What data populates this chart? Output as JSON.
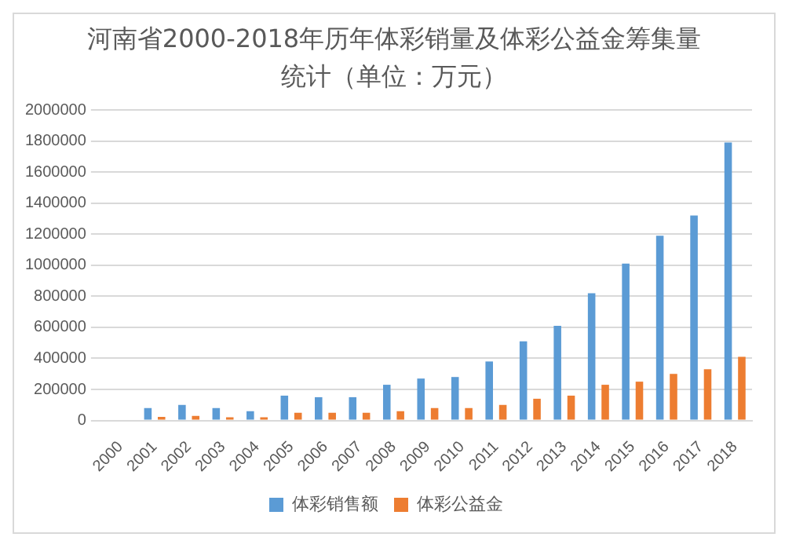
{
  "chart_data": {
    "type": "bar",
    "title": "河南省2000-2018年历年体彩销量及体彩公益金筹集量统计（单位：万元）",
    "categories": [
      "2000",
      "2001",
      "2002",
      "2003",
      "2004",
      "2005",
      "2006",
      "2007",
      "2008",
      "2009",
      "2010",
      "2011",
      "2012",
      "2013",
      "2014",
      "2015",
      "2016",
      "2017",
      "2018"
    ],
    "series": [
      {
        "name": "体彩销售额",
        "color": "#5b9bd5",
        "values": [
          0,
          80000,
          100000,
          80000,
          60000,
          160000,
          150000,
          150000,
          230000,
          270000,
          280000,
          380000,
          510000,
          610000,
          820000,
          1010000,
          1190000,
          1320000,
          1790000
        ]
      },
      {
        "name": "体彩公益金",
        "color": "#ed7d31",
        "values": [
          0,
          23000,
          30000,
          20000,
          20000,
          50000,
          50000,
          50000,
          60000,
          80000,
          80000,
          100000,
          140000,
          160000,
          230000,
          250000,
          300000,
          330000,
          410000
        ]
      }
    ],
    "ylim": [
      0,
      2000000
    ],
    "yticks": [
      0,
      200000,
      400000,
      600000,
      800000,
      1000000,
      1200000,
      1400000,
      1600000,
      1800000,
      2000000
    ],
    "grid": "y",
    "legend": "bottom"
  }
}
